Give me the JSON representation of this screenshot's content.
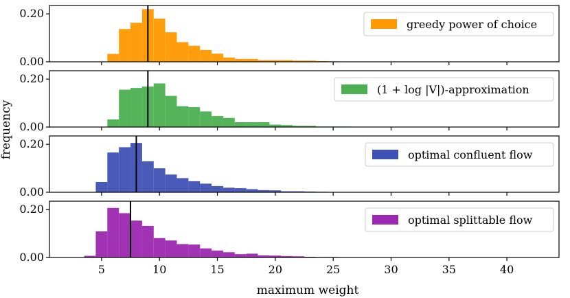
{
  "chart_data": {
    "type": "histogram",
    "xlabel": "maximum weight",
    "ylabel": "frequency",
    "xlim": [
      0.5,
      44.5
    ],
    "ylim": [
      0,
      0.235
    ],
    "xticks": [
      5,
      10,
      15,
      20,
      25,
      30,
      35,
      40
    ],
    "yticks": [
      0.0,
      0.2
    ],
    "ytick_labels": [
      "0.00",
      "0.20"
    ],
    "bin_width": 1,
    "panels": [
      {
        "name": "greedy power of choice",
        "legend": "greedy power of choice",
        "color": "#ff9900",
        "mean_line": 9.0,
        "bin_start": 5.5,
        "values": [
          0.033,
          0.137,
          0.163,
          0.22,
          0.18,
          0.123,
          0.082,
          0.067,
          0.049,
          0.034,
          0.018,
          0.012,
          0.012,
          0.007,
          0.007,
          0.007,
          0.005,
          0.005,
          0.003,
          0.002,
          0.001
        ]
      },
      {
        "name": "(1 + log|V|)-approximation",
        "legend": "(1 + log |V|)-approximation",
        "color": "#4caf50",
        "mean_line": 9.0,
        "bin_start": 5.5,
        "values": [
          0.032,
          0.156,
          0.163,
          0.169,
          0.182,
          0.13,
          0.087,
          0.083,
          0.065,
          0.046,
          0.038,
          0.02,
          0.02,
          0.02,
          0.01,
          0.008,
          0.005,
          0.005,
          0.002,
          0.002,
          0.002,
          0.001
        ]
      },
      {
        "name": "optimal confluent flow",
        "legend": "optimal confluent flow",
        "color": "#3f51b5",
        "mean_line": 8.0,
        "bin_start": 4.5,
        "values": [
          0.043,
          0.166,
          0.188,
          0.206,
          0.129,
          0.1,
          0.074,
          0.059,
          0.046,
          0.036,
          0.026,
          0.019,
          0.017,
          0.013,
          0.009,
          0.008,
          0.004,
          0.004,
          0.003,
          0.002,
          0.001,
          0.001
        ]
      },
      {
        "name": "optimal splittable flow",
        "legend": "optimal splittable flow",
        "color": "#9c27b0",
        "mean_line": 7.5,
        "bin_start": 3.5,
        "values": [
          0.007,
          0.109,
          0.207,
          0.185,
          0.154,
          0.132,
          0.081,
          0.071,
          0.056,
          0.054,
          0.038,
          0.029,
          0.022,
          0.014,
          0.016,
          0.009,
          0.008,
          0.006,
          0.005,
          0.003,
          0.002,
          0.002,
          0.001
        ]
      }
    ]
  }
}
